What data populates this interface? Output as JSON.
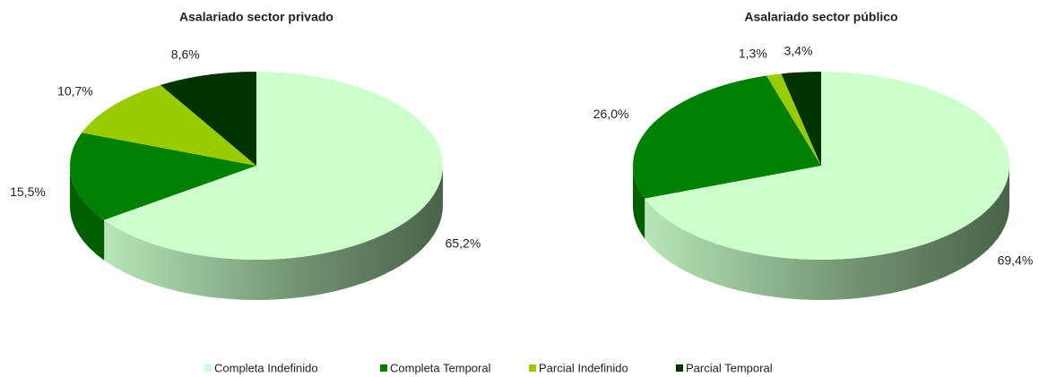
{
  "chart_data": [
    {
      "type": "pie",
      "title": "Asalariado sector privado",
      "categories": [
        "Completa Indefinido",
        "Completa Temporal",
        "Parcial Indefinido",
        "Parcial Temporal"
      ],
      "values": [
        65.2,
        15.5,
        10.7,
        8.6
      ],
      "value_labels": [
        "65,2%",
        "15,5%",
        "10,7%",
        "8,6%"
      ],
      "colors": [
        "#ccffcc",
        "#008000",
        "#99cc00",
        "#003300"
      ]
    },
    {
      "type": "pie",
      "title": "Asalariado sector público",
      "categories": [
        "Completa Indefinido",
        "Completa Temporal",
        "Parcial Indefinido",
        "Parcial Temporal"
      ],
      "values": [
        69.4,
        26.0,
        1.3,
        3.4
      ],
      "value_labels": [
        "69,4%",
        "26,0%",
        "1,3%",
        "3,4%"
      ],
      "colors": [
        "#ccffcc",
        "#008000",
        "#99cc00",
        "#003300"
      ]
    }
  ]
}
